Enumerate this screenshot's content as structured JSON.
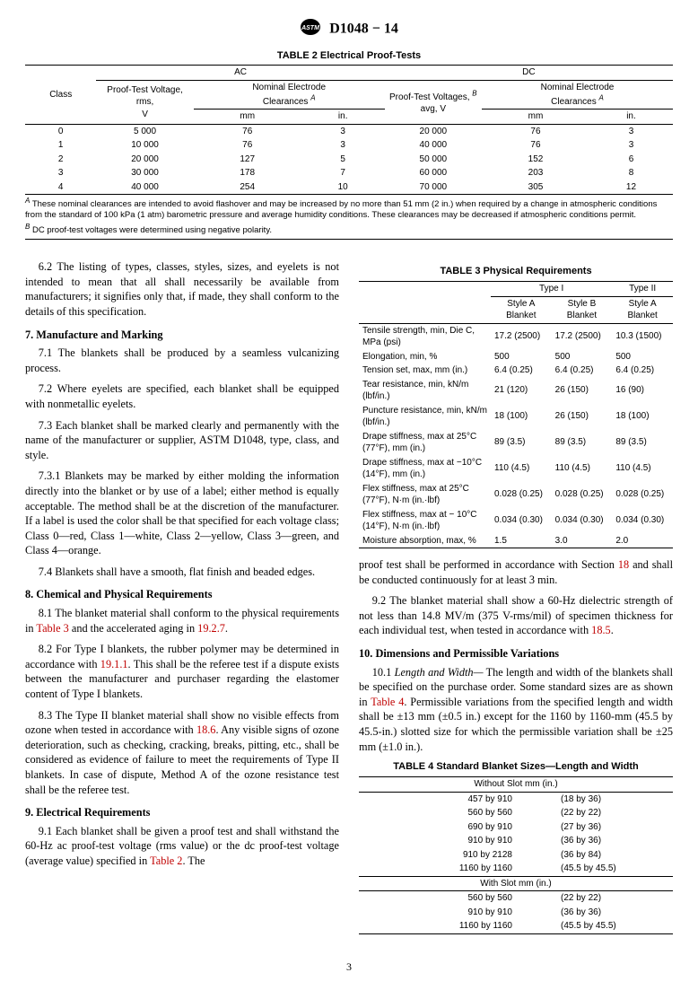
{
  "header": {
    "standard_id": "D1048 − 14"
  },
  "table2": {
    "title": "TABLE 2 Electrical Proof-Tests",
    "group_ac": "AC",
    "group_dc": "DC",
    "col_class": "Class",
    "col_ac_volt": "Proof-Test Voltage, rms,\nV",
    "col_nominal_elec": "Nominal Electrode Clearances",
    "col_dc_volt": "Proof-Test Voltages,\navg, V",
    "sub_mm": "mm",
    "sub_in": "in.",
    "rows": [
      {
        "class": "0",
        "ac_v": "5 000",
        "ac_mm": "76",
        "ac_in": "3",
        "dc_v": "20 000",
        "dc_mm": "76",
        "dc_in": "3"
      },
      {
        "class": "1",
        "ac_v": "10 000",
        "ac_mm": "76",
        "ac_in": "3",
        "dc_v": "40 000",
        "dc_mm": "76",
        "dc_in": "3"
      },
      {
        "class": "2",
        "ac_v": "20 000",
        "ac_mm": "127",
        "ac_in": "5",
        "dc_v": "50 000",
        "dc_mm": "152",
        "dc_in": "6"
      },
      {
        "class": "3",
        "ac_v": "30 000",
        "ac_mm": "178",
        "ac_in": "7",
        "dc_v": "60 000",
        "dc_mm": "203",
        "dc_in": "8"
      },
      {
        "class": "4",
        "ac_v": "40 000",
        "ac_mm": "254",
        "ac_in": "10",
        "dc_v": "70 000",
        "dc_mm": "305",
        "dc_in": "12"
      }
    ],
    "footnote_a": "These nominal clearances are intended to avoid flashover and may be increased by no more than 51 mm (2 in.) when required by a change in atmospheric conditions from the standard of 100 kPa (1 atm) barometric pressure and average humidity conditions. These clearances may be decreased if atmospheric conditions permit.",
    "footnote_b": "DC proof-test voltages were determined using negative polarity."
  },
  "table3": {
    "title": "TABLE 3 Physical Requirements",
    "h_type1": "Type I",
    "h_type2": "Type II",
    "h_styleA": "Style A Blanket",
    "h_styleB": "Style B Blanket",
    "rows": [
      {
        "prop": "Tensile strength, min, Die C, MPa (psi)",
        "a": "17.2 (2500)",
        "b": "17.2 (2500)",
        "c": "10.3 (1500)"
      },
      {
        "prop": "Elongation, min, %",
        "a": "500",
        "b": "500",
        "c": "500"
      },
      {
        "prop": "Tension set, max, mm (in.)",
        "a": "6.4 (0.25)",
        "b": "6.4 (0.25)",
        "c": "6.4 (0.25)"
      },
      {
        "prop": "Tear resistance, min, kN/m (lbf/in.)",
        "a": "21 (120)",
        "b": "26 (150)",
        "c": "16 (90)"
      },
      {
        "prop": "Puncture resistance, min, kN/m (lbf/in.)",
        "a": "18 (100)",
        "b": "26 (150)",
        "c": "18 (100)"
      },
      {
        "prop": "Drape stiffness, max at 25°C (77°F), mm (in.)",
        "a": "89 (3.5)",
        "b": "89 (3.5)",
        "c": "89 (3.5)"
      },
      {
        "prop": "Drape stiffness, max at −10°C (14°F), mm (in.)",
        "a": "110 (4.5)",
        "b": "110 (4.5)",
        "c": "110 (4.5)"
      },
      {
        "prop": "Flex stiffness, max at 25°C (77°F), N·m (in.·lbf)",
        "a": "0.028 (0.25)",
        "b": "0.028 (0.25)",
        "c": "0.028 (0.25)"
      },
      {
        "prop": "Flex stiffness, max at − 10°C (14°F), N·m (in.·lbf)",
        "a": "0.034 (0.30)",
        "b": "0.034 (0.30)",
        "c": "0.034 (0.30)"
      },
      {
        "prop": "Moisture absorption, max, %",
        "a": "1.5",
        "b": "3.0",
        "c": "2.0"
      }
    ]
  },
  "table4": {
    "title": "TABLE 4 Standard Blanket Sizes—Length and Width",
    "h_without": "Without Slot mm (in.)",
    "h_with": "With Slot mm (in.)",
    "rows_without": [
      {
        "mm": "457 by 910",
        "in": "(18 by 36)"
      },
      {
        "mm": "560 by 560",
        "in": "(22 by 22)"
      },
      {
        "mm": "690 by 910",
        "in": "(27 by 36)"
      },
      {
        "mm": "910 by 910",
        "in": "(36 by 36)"
      },
      {
        "mm": "910 by 2128",
        "in": "(36 by 84)"
      },
      {
        "mm": "1160 by 1160",
        "in": "(45.5 by 45.5)"
      }
    ],
    "rows_with": [
      {
        "mm": "560 by 560",
        "in": "(22 by 22)"
      },
      {
        "mm": "910 by 910",
        "in": "(36 by 36)"
      },
      {
        "mm": "1160 by 1160",
        "in": "(45.5 by 45.5)"
      }
    ]
  },
  "text": {
    "p6_2": "6.2 The listing of types, classes, styles, sizes, and eyelets is not intended to mean that all shall necessarily be available from manufacturers; it signifies only that, if made, they shall conform to the details of this specification.",
    "s7": "7. Manufacture and Marking",
    "p7_1": "7.1 The blankets shall be produced by a seamless vulcanizing process.",
    "p7_2": "7.2 Where eyelets are specified, each blanket shall be equipped with nonmetallic eyelets.",
    "p7_3": "7.3 Each blanket shall be marked clearly and permanently with the name of the manufacturer or supplier, ASTM D1048, type, class, and style.",
    "p7_3_1": "7.3.1 Blankets may be marked by either molding the information directly into the blanket or by use of a label; either method is equally acceptable. The method shall be at the discretion of the manufacturer. If a label is used the color shall be that specified for each voltage class; Class 0—red, Class 1—white, Class 2—yellow, Class 3—green, and Class 4—orange.",
    "p7_4": "7.4 Blankets shall have a smooth, flat finish and beaded edges.",
    "s8": "8. Chemical and Physical Requirements",
    "p8_1a": "8.1 The blanket material shall conform to the physical requirements in ",
    "p8_1_ref1": "Table 3",
    "p8_1b": " and the accelerated aging in ",
    "p8_1_ref2": "19.2.7",
    "p8_1c": ".",
    "p8_2a": "8.2 For Type I blankets, the rubber polymer may be determined in accordance with ",
    "p8_2_ref": "19.1.1",
    "p8_2b": ". This shall be the referee test if a dispute exists between the manufacturer and purchaser regarding the elastomer content of Type I blankets.",
    "p8_3a": "8.3 The Type II blanket material shall show no visible effects from ozone when tested in accordance with ",
    "p8_3_ref": "18.6",
    "p8_3b": ". Any visible signs of ozone deterioration, such as checking, cracking, breaks, pitting, etc., shall be considered as evidence of failure to meet the requirements of Type II blankets. In case of dispute, Method A of the ozone resistance test shall be the referee test.",
    "s9": "9. Electrical Requirements",
    "p9_1a": "9.1 Each blanket shall be given a proof test and shall withstand the 60-Hz ac proof-test voltage (rms value) or the dc proof-test voltage (average value) specified in ",
    "p9_1_ref1": "Table 2",
    "p9_1b": ". The ",
    "p9_1c": "proof test shall be performed in accordance with Section ",
    "p9_1_ref2": "18",
    "p9_1d": " and shall be conducted continuously for at least 3 min.",
    "p9_2a": "9.2 The blanket material shall show a 60-Hz dielectric strength of not less than 14.8 MV/m (375 V-rms/mil) of specimen thickness for each individual test, when tested in accordance with ",
    "p9_2_ref": "18.5",
    "p9_2b": ".",
    "s10": "10. Dimensions and Permissible Variations",
    "p10_1_lead": "Length and Width—",
    "p10_1a": "10.1 ",
    "p10_1b": " The length and width of the blankets shall be specified on the purchase order. Some standard sizes are as shown in ",
    "p10_1_ref": "Table 4",
    "p10_1c": ". Permissible variations from the specified length and width shall be ±13 mm (±0.5 in.) except for the 1160 by 1160-mm (45.5 by 45.5-in.) slotted size for which the permissible variation shall be ±25 mm (±1.0 in.)."
  },
  "page": "3"
}
